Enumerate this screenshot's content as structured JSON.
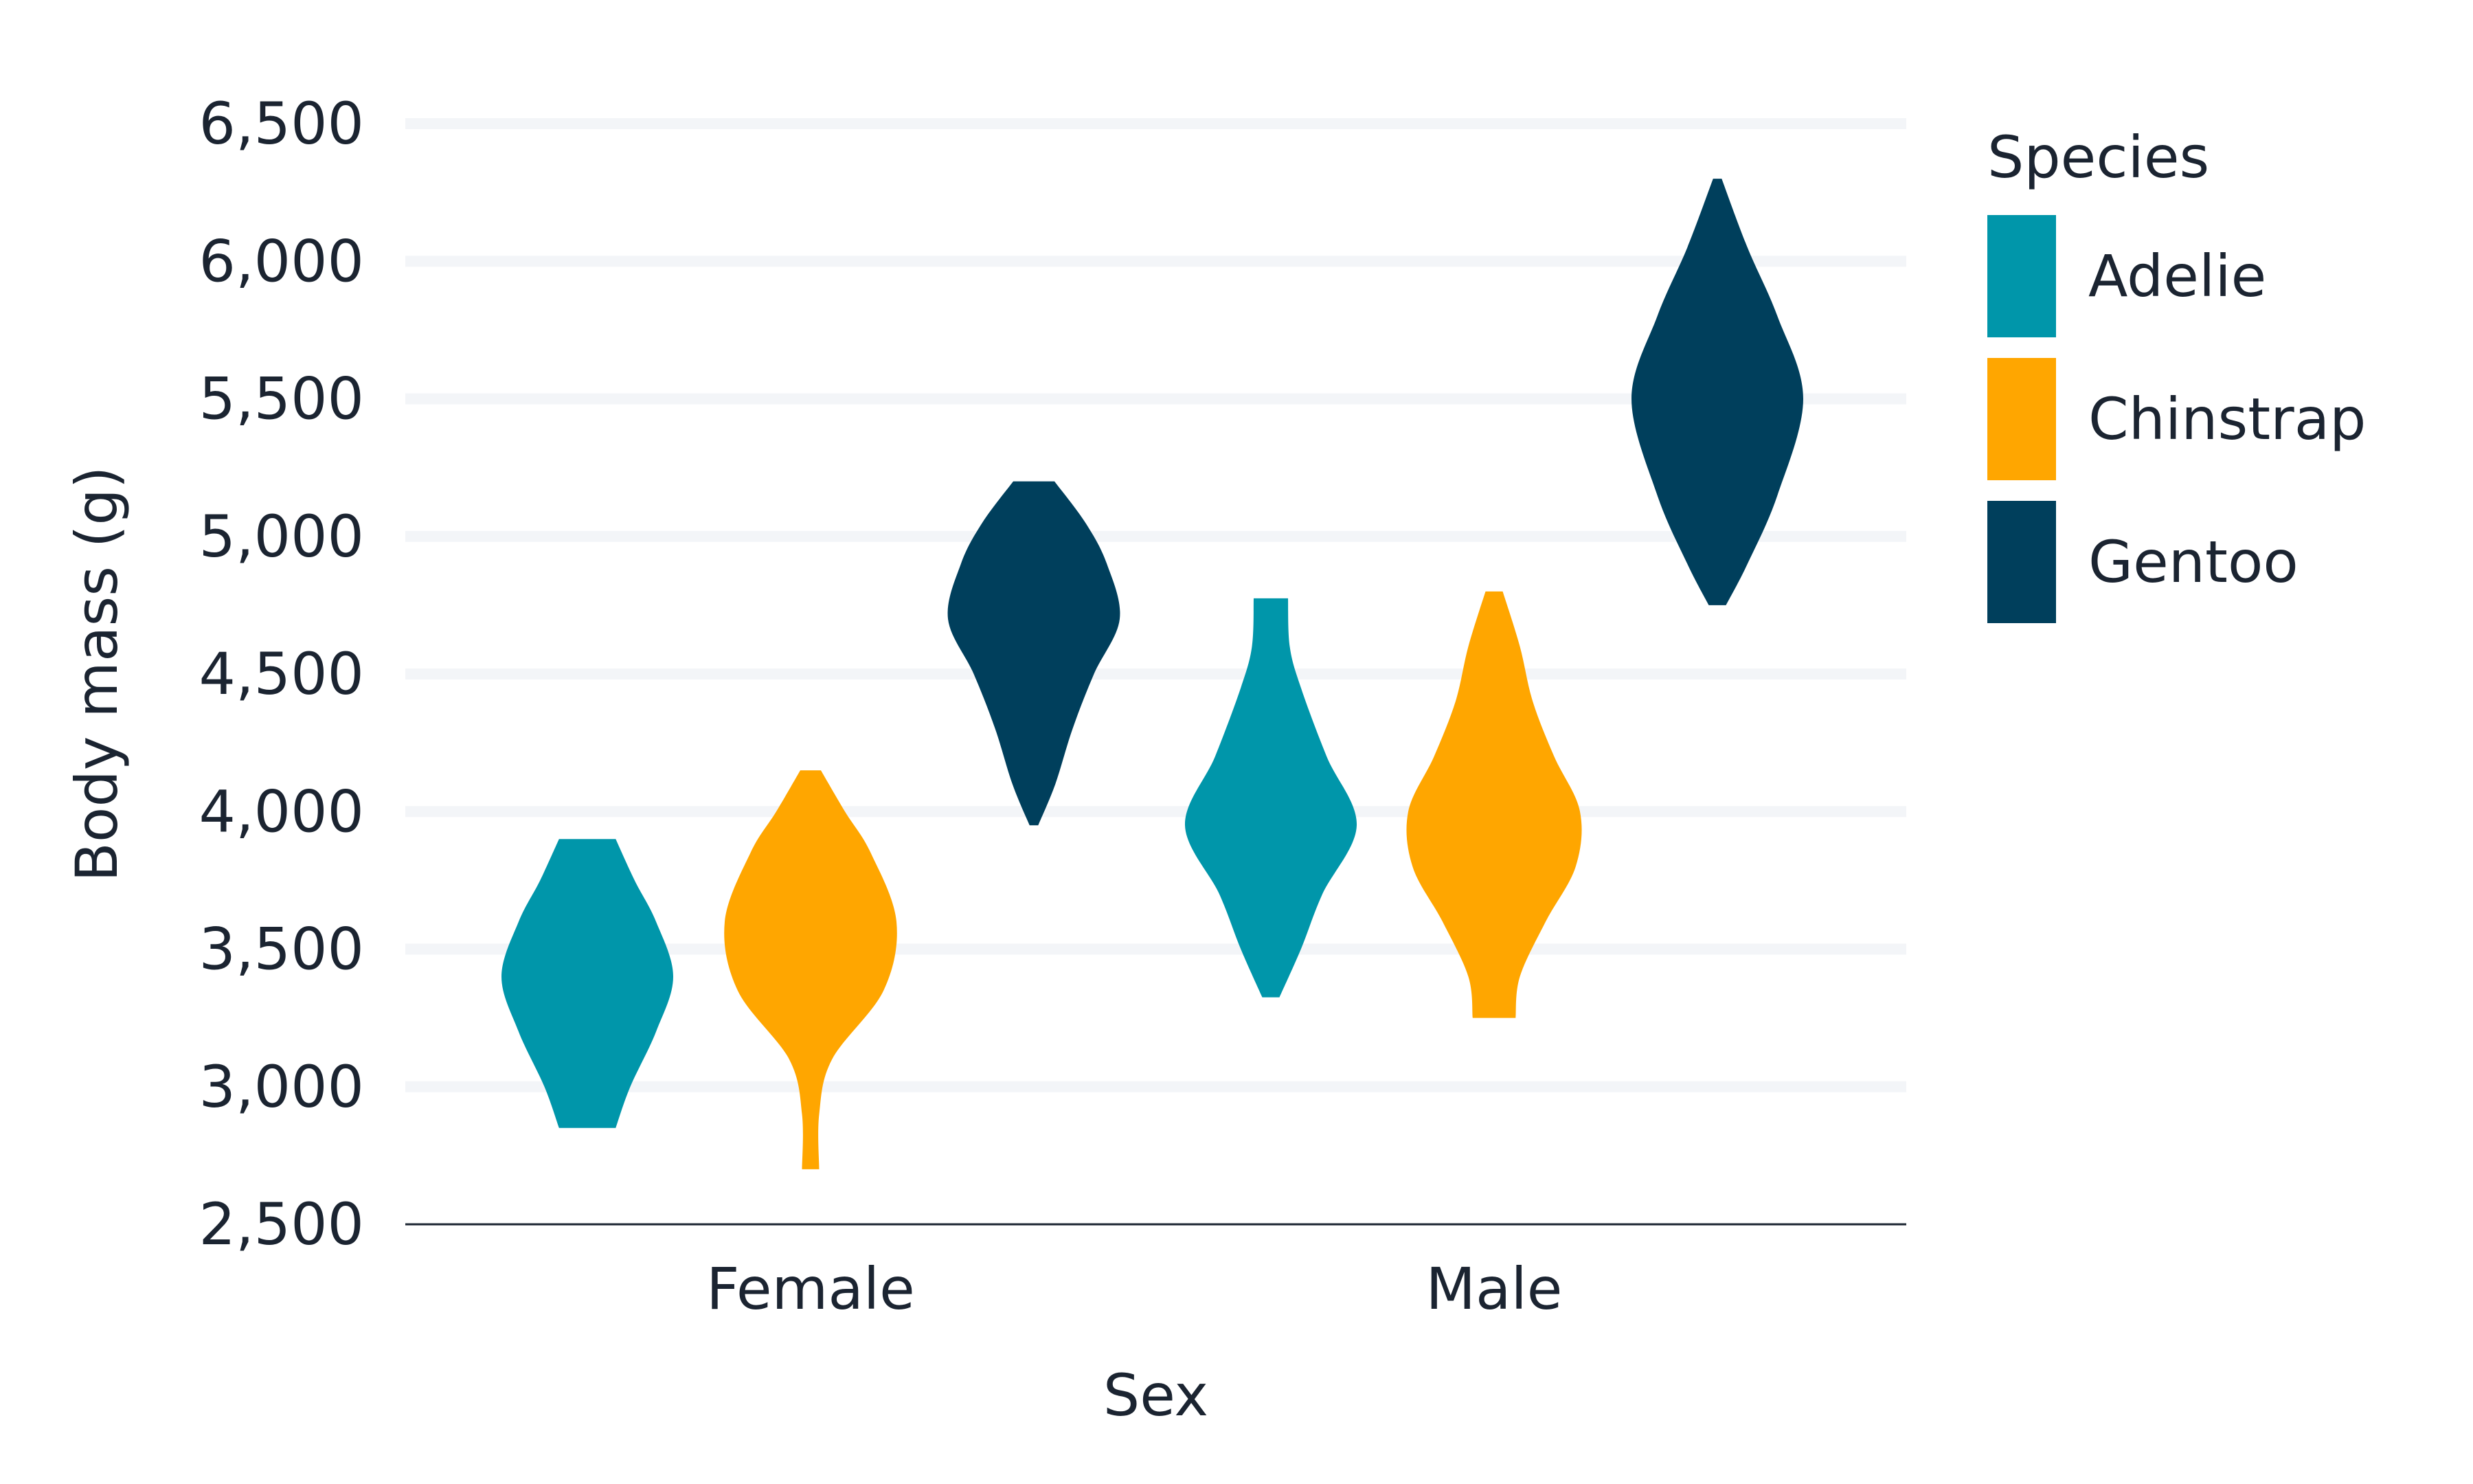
{
  "chart_data": {
    "type": "violin",
    "title": "",
    "xlabel": "Sex",
    "ylabel": "Body mass (g)",
    "ylim": [
      2500,
      6500
    ],
    "yticks": [
      2500,
      3000,
      3500,
      4000,
      4500,
      5000,
      5500,
      6000,
      6500
    ],
    "ytick_labels": [
      "2,500",
      "3,000",
      "3,500",
      "4,000",
      "4,500",
      "5,000",
      "5,500",
      "6,000",
      "6,500"
    ],
    "grid": "horizontal",
    "categories": [
      "Female",
      "Male"
    ],
    "legend": {
      "title": "Species",
      "position": "right"
    },
    "series": [
      {
        "name": "Adelie",
        "color": "#0096aa",
        "violins": [
          {
            "category": "Female",
            "min": 2850,
            "max": 3900,
            "profile": [
              [
                2850,
                0.33
              ],
              [
                3000,
                0.5
              ],
              [
                3200,
                0.8
              ],
              [
                3400,
                1.0
              ],
              [
                3600,
                0.8
              ],
              [
                3750,
                0.55
              ],
              [
                3900,
                0.33
              ]
            ]
          },
          {
            "category": "Male",
            "min": 3325,
            "max": 4775,
            "profile": [
              [
                3325,
                0.1
              ],
              [
                3500,
                0.35
              ],
              [
                3700,
                0.6
              ],
              [
                3950,
                1.0
              ],
              [
                4200,
                0.65
              ],
              [
                4450,
                0.35
              ],
              [
                4600,
                0.22
              ],
              [
                4775,
                0.2
              ]
            ]
          }
        ]
      },
      {
        "name": "Chinstrap",
        "color": "#ffa600",
        "violins": [
          {
            "category": "Female",
            "min": 2700,
            "max": 4150,
            "profile": [
              [
                2700,
                0.1
              ],
              [
                2900,
                0.1
              ],
              [
                3100,
                0.25
              ],
              [
                3350,
                0.85
              ],
              [
                3600,
                1.0
              ],
              [
                3850,
                0.7
              ],
              [
                4000,
                0.4
              ],
              [
                4150,
                0.12
              ]
            ]
          },
          {
            "category": "Male",
            "min": 3250,
            "max": 4800,
            "profile": [
              [
                3250,
                0.25
              ],
              [
                3400,
                0.3
              ],
              [
                3600,
                0.6
              ],
              [
                3800,
                0.95
              ],
              [
                4000,
                1.0
              ],
              [
                4200,
                0.7
              ],
              [
                4400,
                0.45
              ],
              [
                4600,
                0.3
              ],
              [
                4800,
                0.1
              ]
            ]
          }
        ]
      },
      {
        "name": "Gentoo",
        "color": "#003f5c",
        "violins": [
          {
            "category": "Female",
            "min": 3950,
            "max": 5200,
            "profile": [
              [
                3950,
                0.05
              ],
              [
                4100,
                0.25
              ],
              [
                4300,
                0.45
              ],
              [
                4500,
                0.7
              ],
              [
                4700,
                1.0
              ],
              [
                4900,
                0.85
              ],
              [
                5050,
                0.6
              ],
              [
                5200,
                0.24
              ]
            ]
          },
          {
            "category": "Male",
            "min": 4750,
            "max": 6300,
            "profile": [
              [
                4750,
                0.1
              ],
              [
                4900,
                0.35
              ],
              [
                5150,
                0.7
              ],
              [
                5500,
                1.0
              ],
              [
                5800,
                0.7
              ],
              [
                6050,
                0.35
              ],
              [
                6300,
                0.05
              ]
            ]
          }
        ]
      }
    ]
  }
}
